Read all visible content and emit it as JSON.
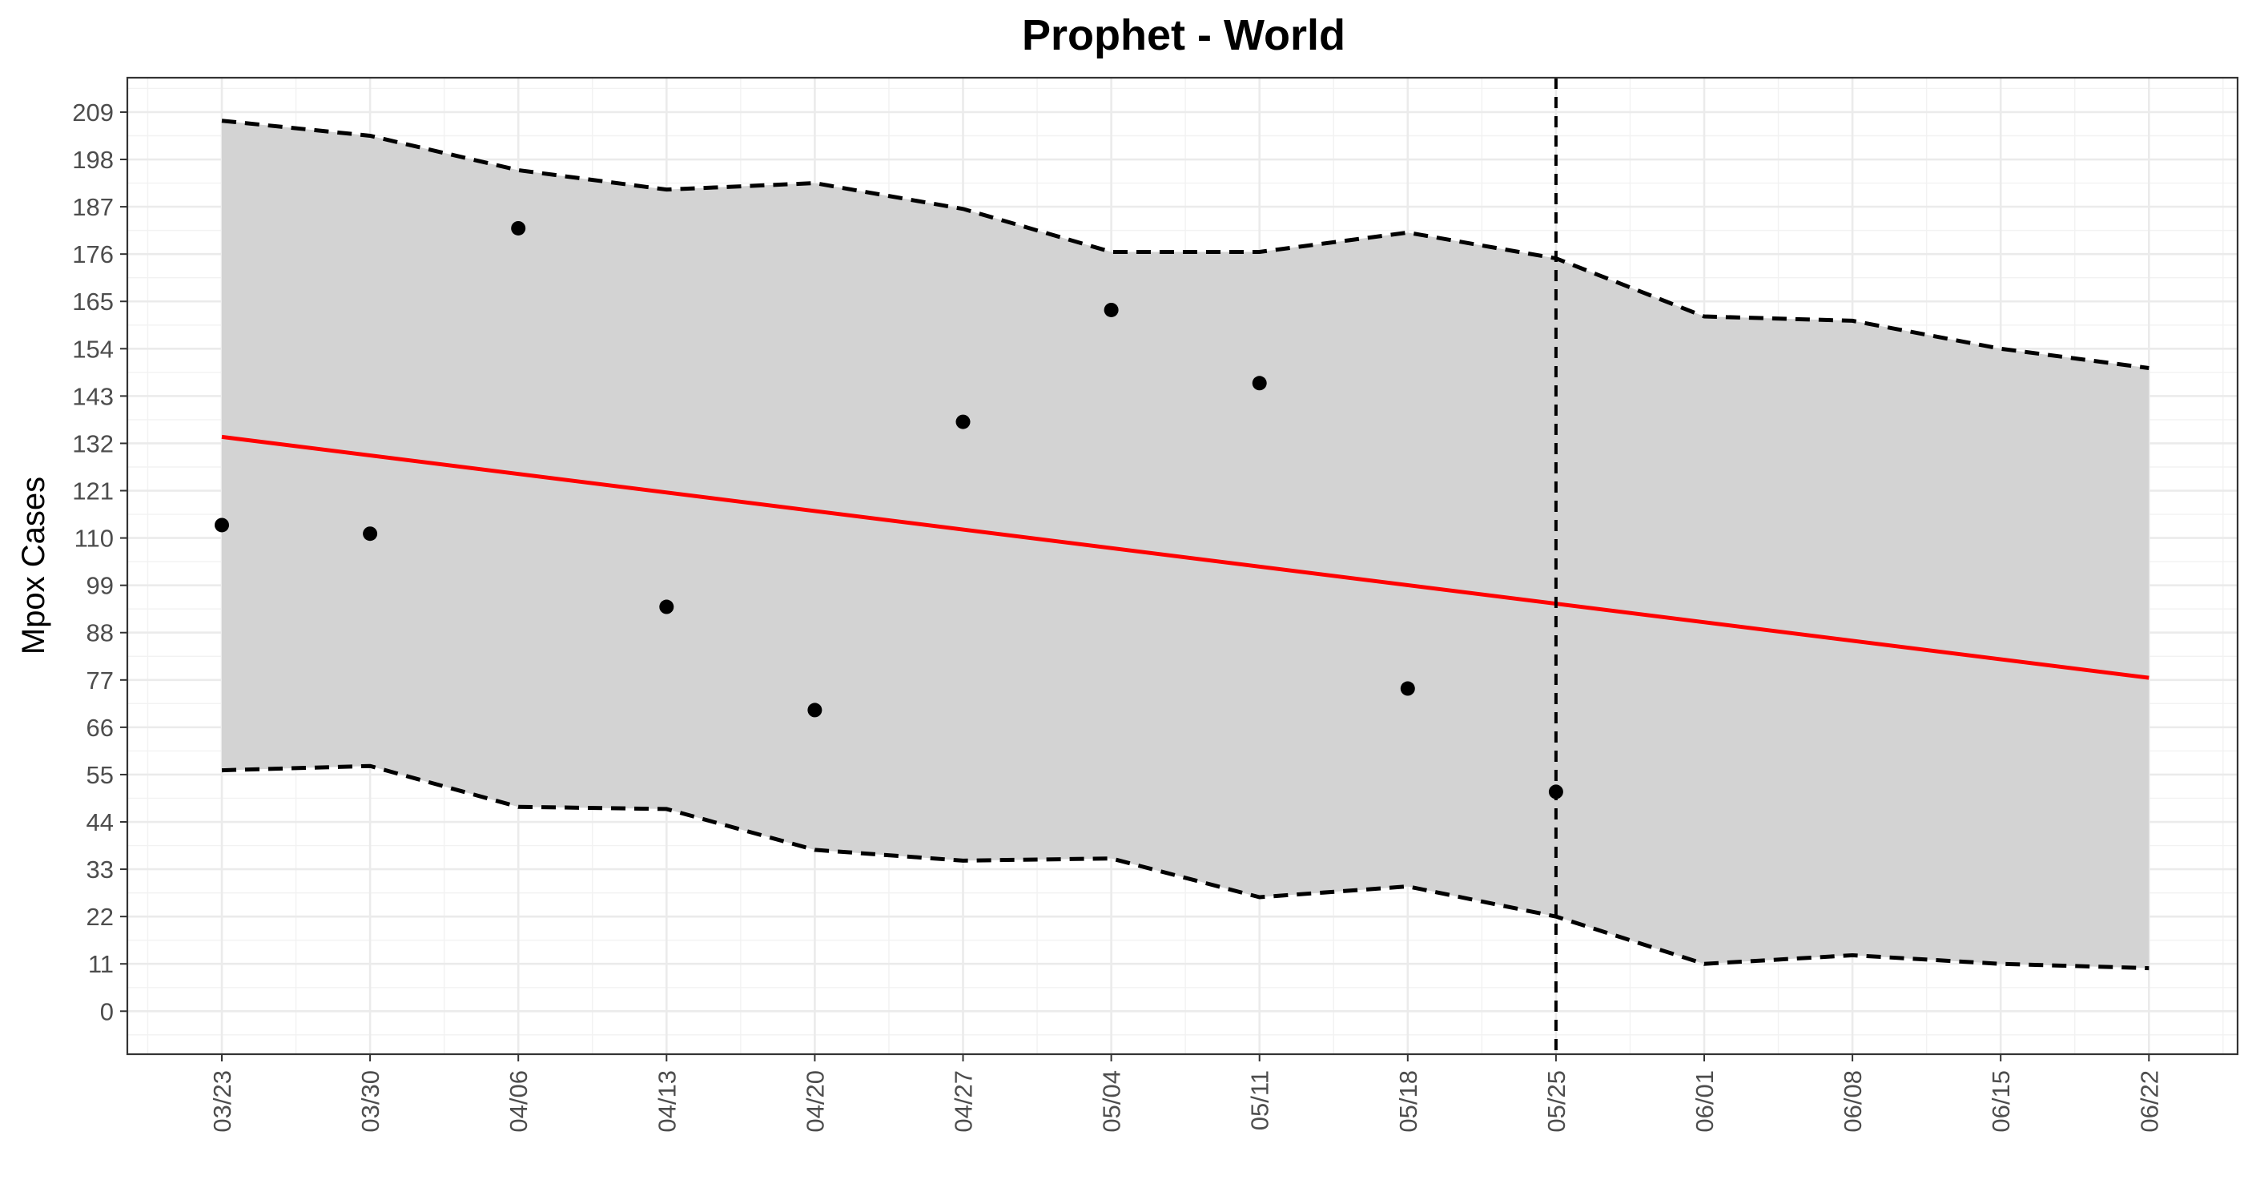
{
  "chart_data": {
    "type": "line",
    "title": "Prophet - World",
    "xlabel": "",
    "ylabel": "Mpox Cases",
    "x_tick_labels": [
      "03/23",
      "03/30",
      "04/06",
      "04/13",
      "04/20",
      "04/27",
      "05/04",
      "05/11",
      "05/18",
      "05/25",
      "06/01",
      "06/08",
      "06/15",
      "06/22"
    ],
    "y_ticks": [
      0,
      11,
      22,
      33,
      44,
      55,
      66,
      77,
      88,
      99,
      110,
      121,
      132,
      143,
      154,
      165,
      176,
      187,
      198,
      209
    ],
    "ylim": [
      -10,
      217
    ],
    "grid": true,
    "legend": "none",
    "vertical_line_at": "05/25",
    "series": [
      {
        "kind": "points",
        "color": "#000000",
        "x": [
          "03/23",
          "03/30",
          "04/06",
          "04/13",
          "04/20",
          "04/27",
          "05/04",
          "05/11",
          "05/18",
          "05/25"
        ],
        "values": [
          113,
          111,
          182,
          94,
          70,
          137,
          163,
          146,
          75,
          51
        ]
      },
      {
        "kind": "line",
        "color": "#ff0000",
        "x": [
          "03/23",
          "06/22"
        ],
        "values": [
          133.5,
          77.5
        ]
      },
      {
        "kind": "upper-bound",
        "color": "#000000",
        "dash": "dashed",
        "x": [
          "03/23",
          "03/30",
          "04/06",
          "04/13",
          "04/20",
          "04/27",
          "05/04",
          "05/11",
          "05/18",
          "05/25",
          "06/01",
          "06/08",
          "06/15",
          "06/22"
        ],
        "values": [
          207,
          203.5,
          195.5,
          191,
          192.5,
          186.5,
          176.5,
          176.5,
          181,
          175,
          161.5,
          160.5,
          154,
          149.5
        ]
      },
      {
        "kind": "lower-bound",
        "color": "#000000",
        "dash": "dashed",
        "x": [
          "03/23",
          "03/30",
          "04/06",
          "04/13",
          "04/20",
          "04/27",
          "05/04",
          "05/11",
          "05/18",
          "05/25",
          "06/01",
          "06/08",
          "06/15",
          "06/22"
        ],
        "values": [
          56,
          57,
          47.5,
          47,
          37.5,
          35,
          35.5,
          26.5,
          29,
          22,
          11,
          13,
          11,
          10
        ]
      }
    ],
    "band_color": "#d3d3d3"
  }
}
